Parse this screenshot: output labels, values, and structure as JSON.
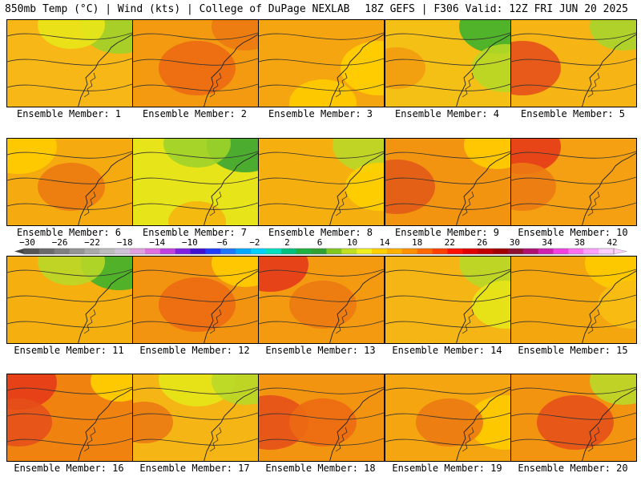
{
  "header": {
    "left": "850mb Temp (°C) | Wind (kts) | College of DuPage NEXLAB",
    "right": "18Z GEFS | F306 Valid: 12Z FRI JUN 20 2025"
  },
  "panels": [
    {
      "label": "Ensemble Member: 1",
      "base": "#f7b716",
      "blobs": [
        {
          "c": "#9fd12a",
          "a": "tr"
        },
        {
          "c": "#e9e618",
          "a": "t"
        }
      ]
    },
    {
      "label": "Ensemble Member: 2",
      "base": "#f39a10",
      "blobs": [
        {
          "c": "#ec6a12",
          "a": "c"
        },
        {
          "c": "#ec7a12",
          "a": "tr"
        }
      ]
    },
    {
      "label": "Ensemble Member: 3",
      "base": "#f5a50f",
      "blobs": [
        {
          "c": "#ffd000",
          "a": "r"
        },
        {
          "c": "#ffcc00",
          "a": "b"
        }
      ]
    },
    {
      "label": "Ensemble Member: 4",
      "base": "#f4c016",
      "blobs": [
        {
          "c": "#3fb12b",
          "a": "tr"
        },
        {
          "c": "#b7d826",
          "a": "r"
        },
        {
          "c": "#f29c0e",
          "a": "l"
        }
      ]
    },
    {
      "label": "Ensemble Member: 5",
      "base": "#f6b514",
      "blobs": [
        {
          "c": "#e6501a",
          "a": "l"
        },
        {
          "c": "#a8d42b",
          "a": "tr"
        }
      ]
    },
    {
      "label": "Ensemble Member: 6",
      "base": "#f5aa10",
      "blobs": [
        {
          "c": "#ffcc00",
          "a": "tl"
        },
        {
          "c": "#ec7a12",
          "a": "c"
        }
      ]
    },
    {
      "label": "Ensemble Member: 7",
      "base": "#e7e41a",
      "blobs": [
        {
          "c": "#3aa532",
          "a": "tr"
        },
        {
          "c": "#9fd12a",
          "a": "t"
        },
        {
          "c": "#f5b50f",
          "a": "b"
        }
      ]
    },
    {
      "label": "Ensemble Member: 8",
      "base": "#f5b010",
      "blobs": [
        {
          "c": "#b9d828",
          "a": "tr"
        },
        {
          "c": "#ffd000",
          "a": "r"
        }
      ]
    },
    {
      "label": "Ensemble Member: 9",
      "base": "#f29410",
      "blobs": [
        {
          "c": "#e35a18",
          "a": "l"
        },
        {
          "c": "#ffcc00",
          "a": "tr"
        }
      ]
    },
    {
      "label": "Ensemble Member: 10",
      "base": "#f5a012",
      "blobs": [
        {
          "c": "#e63a1a",
          "a": "tl"
        },
        {
          "c": "#ec7a12",
          "a": "l"
        }
      ]
    },
    {
      "label": "Ensemble Member: 11",
      "base": "#f5b010",
      "blobs": [
        {
          "c": "#3fb12b",
          "a": "tr"
        },
        {
          "c": "#b9d828",
          "a": "t"
        }
      ]
    },
    {
      "label": "Ensemble Member: 12",
      "base": "#f29410",
      "blobs": [
        {
          "c": "#ec6a12",
          "a": "c"
        },
        {
          "c": "#ffcc00",
          "a": "tr"
        }
      ]
    },
    {
      "label": "Ensemble Member: 13",
      "base": "#f39a10",
      "blobs": [
        {
          "c": "#e63a1a",
          "a": "tl"
        },
        {
          "c": "#ec7a12",
          "a": "c"
        }
      ]
    },
    {
      "label": "Ensemble Member: 14",
      "base": "#f5b514",
      "blobs": [
        {
          "c": "#b9d828",
          "a": "tr"
        },
        {
          "c": "#e6e618",
          "a": "r"
        }
      ]
    },
    {
      "label": "Ensemble Member: 15",
      "base": "#f4a60f",
      "blobs": [
        {
          "c": "#ffcc00",
          "a": "tr"
        },
        {
          "c": "#f8be12",
          "a": "r"
        }
      ]
    },
    {
      "label": "Ensemble Member: 16",
      "base": "#f0820f",
      "blobs": [
        {
          "c": "#e63a1a",
          "a": "tl"
        },
        {
          "c": "#e6501a",
          "a": "l"
        },
        {
          "c": "#ffd000",
          "a": "tr"
        }
      ]
    },
    {
      "label": "Ensemble Member: 17",
      "base": "#f5b514",
      "blobs": [
        {
          "c": "#e6e618",
          "a": "t"
        },
        {
          "c": "#b9d828",
          "a": "tr"
        },
        {
          "c": "#ec7a12",
          "a": "l"
        }
      ]
    },
    {
      "label": "Ensemble Member: 18",
      "base": "#f29410",
      "blobs": [
        {
          "c": "#e6501a",
          "a": "l"
        },
        {
          "c": "#ec6a12",
          "a": "c"
        }
      ]
    },
    {
      "label": "Ensemble Member: 19",
      "base": "#f5a50f",
      "blobs": [
        {
          "c": "#ffcc00",
          "a": "r"
        },
        {
          "c": "#ec7a12",
          "a": "c"
        }
      ]
    },
    {
      "label": "Ensemble Member: 20",
      "base": "#f29410",
      "blobs": [
        {
          "c": "#e6501a",
          "a": "c"
        },
        {
          "c": "#b9d828",
          "a": "tr"
        }
      ]
    }
  ],
  "colorbar": {
    "labels": [
      "−30",
      "−26",
      "−22",
      "−18",
      "−14",
      "−10",
      "−6",
      "−2",
      "2",
      "6",
      "10",
      "14",
      "18",
      "22",
      "26",
      "30",
      "34",
      "38",
      "42"
    ],
    "colors": [
      "#555555",
      "#6a6a6a",
      "#7f7f7f",
      "#949494",
      "#a9a9a9",
      "#bcbcbc",
      "#cfc3d8",
      "#e0a0e0",
      "#e070e0",
      "#c040e0",
      "#8020e0",
      "#4010d0",
      "#1e3cff",
      "#1e78ff",
      "#00a8ff",
      "#00d0ff",
      "#00e0c0",
      "#00c080",
      "#20b040",
      "#30a030",
      "#80c820",
      "#c0e020",
      "#f0f020",
      "#ffd000",
      "#ffb000",
      "#ff9000",
      "#ff6800",
      "#ff4000",
      "#ff1000",
      "#e00000",
      "#c00000",
      "#a00000",
      "#901030",
      "#b01070",
      "#d020b0",
      "#f040e0",
      "#ff70f0",
      "#ffa0ff",
      "#ffd0ff"
    ]
  }
}
